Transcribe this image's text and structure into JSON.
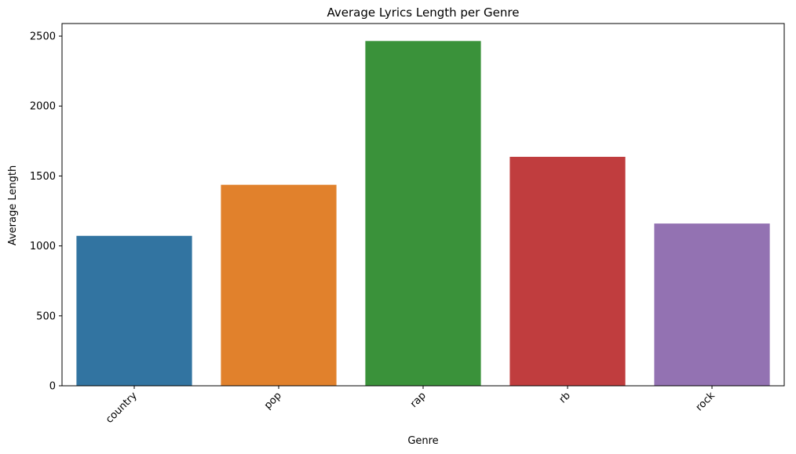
{
  "chart_data": {
    "type": "bar",
    "title": "Average Lyrics Length per Genre",
    "xlabel": "Genre",
    "ylabel": "Average Length",
    "categories": [
      "country",
      "pop",
      "rap",
      "rb",
      "rock"
    ],
    "values": [
      1072,
      1437,
      2465,
      1637,
      1160
    ],
    "colors": [
      "#3274a1",
      "#e1812c",
      "#3a923a",
      "#c03d3e",
      "#9372b2"
    ],
    "yticks": [
      0,
      500,
      1000,
      1500,
      2000,
      2500
    ],
    "ylim": [
      0,
      2590
    ],
    "grid": false,
    "legend": "none",
    "xtick_rotation": 45
  }
}
